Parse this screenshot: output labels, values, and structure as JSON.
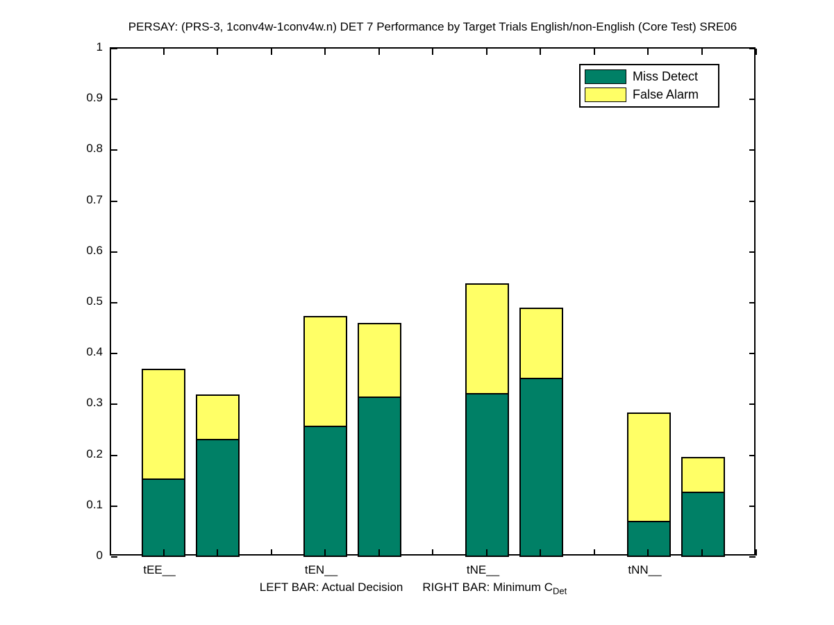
{
  "title": "PERSAY: (PRS-3, 1conv4w-1conv4w.n) DET 7 Performance by Target Trials English/non-English (Core Test) SRE06",
  "legend": {
    "items": [
      {
        "label": "Miss Detect",
        "color": "#008066"
      },
      {
        "label": "False Alarm",
        "color": "#FFFF66"
      }
    ]
  },
  "y_axis": {
    "tick_labels": [
      "1",
      "0.9",
      "0.8",
      "0.7",
      "0.6",
      "0.5",
      "0.4",
      "0.3",
      "0.2",
      "0.1",
      "0"
    ]
  },
  "x_axis": {
    "categories": [
      "tEE__",
      "tEN__",
      "tNE__",
      "tNN__"
    ]
  },
  "xlabel": {
    "left_bar_text": "LEFT BAR: Actual Decision",
    "right_bar_text": "RIGHT BAR: Minimum C",
    "subscript": "Det"
  },
  "chart_data": {
    "type": "bar",
    "stacked": true,
    "title": "PERSAY: (PRS-3, 1conv4w-1conv4w.n) DET 7 Performance by Target Trials English/non-English (Core Test) SRE06",
    "categories": [
      "tEE__",
      "tEN__",
      "tNE__",
      "tNN__"
    ],
    "bar_pair_meaning": [
      "Actual Decision",
      "Minimum CDet"
    ],
    "ylim": [
      0,
      1
    ],
    "y_tick_interval": 0.1,
    "grid": false,
    "legend_position": "top-right",
    "series": [
      {
        "name": "Miss Detect",
        "color": "#008066",
        "values": {
          "actual": [
            0.152,
            0.255,
            0.32,
            0.068
          ],
          "minimum": [
            0.23,
            0.313,
            0.35,
            0.126
          ]
        }
      },
      {
        "name": "False Alarm",
        "color": "#FFFF66",
        "values": {
          "actual": [
            0.218,
            0.219,
            0.218,
            0.216
          ],
          "minimum": [
            0.09,
            0.147,
            0.14,
            0.071
          ]
        }
      }
    ]
  }
}
